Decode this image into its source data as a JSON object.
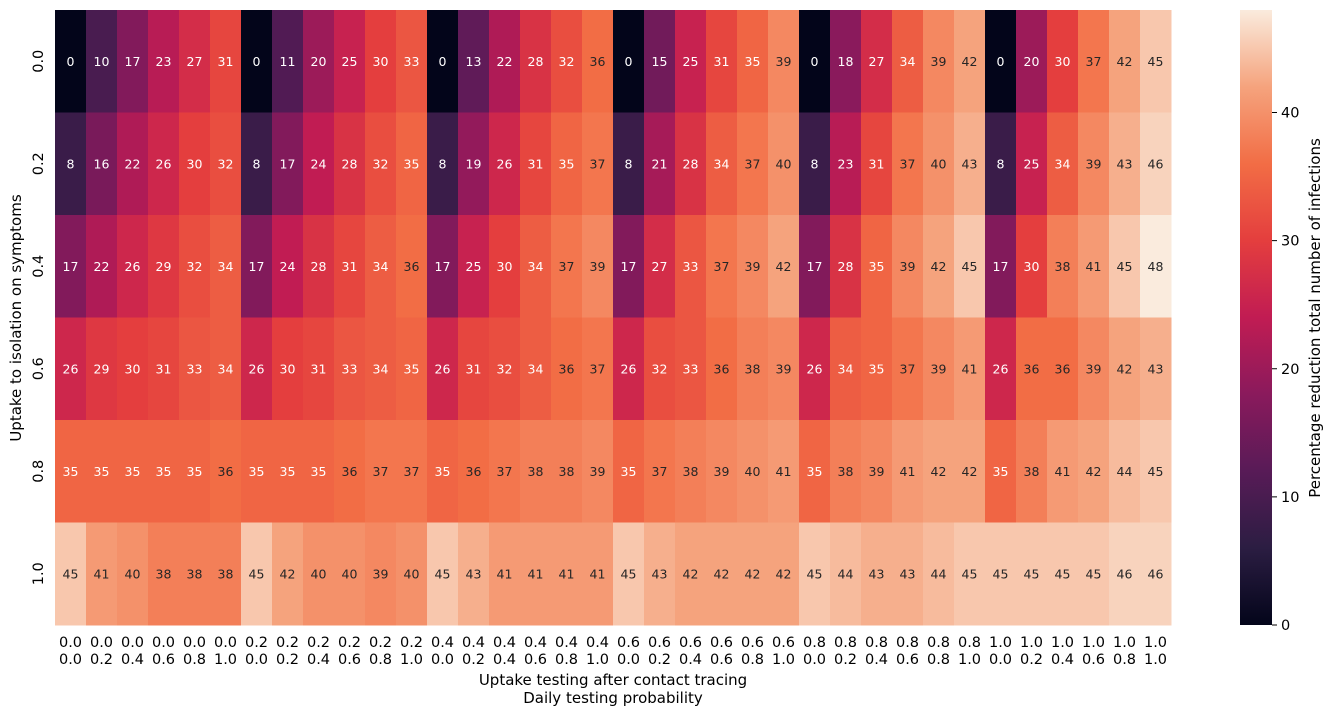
{
  "chart_data": {
    "type": "heatmap",
    "xlabel": "Uptake testing after contact tracing",
    "xlabel2": "Daily testing probability",
    "ylabel": "Uptake to isolation on symptoms",
    "colorbar_label": "Percentage reduction total number of infections",
    "colormap": "rocket",
    "vmin": 0,
    "vmax": 48,
    "colorbar_ticks": [
      "0",
      "10",
      "20",
      "30",
      "40"
    ],
    "y_categories": [
      "0.0",
      "0.2",
      "0.4",
      "0.6",
      "0.8",
      "1.0"
    ],
    "x_categories": [
      [
        "0.0",
        "0.0"
      ],
      [
        "0.0",
        "0.2"
      ],
      [
        "0.0",
        "0.4"
      ],
      [
        "0.0",
        "0.6"
      ],
      [
        "0.0",
        "0.8"
      ],
      [
        "0.0",
        "1.0"
      ],
      [
        "0.2",
        "0.0"
      ],
      [
        "0.2",
        "0.2"
      ],
      [
        "0.2",
        "0.4"
      ],
      [
        "0.2",
        "0.6"
      ],
      [
        "0.2",
        "0.8"
      ],
      [
        "0.2",
        "1.0"
      ],
      [
        "0.4",
        "0.0"
      ],
      [
        "0.4",
        "0.2"
      ],
      [
        "0.4",
        "0.4"
      ],
      [
        "0.4",
        "0.6"
      ],
      [
        "0.4",
        "0.8"
      ],
      [
        "0.4",
        "1.0"
      ],
      [
        "0.6",
        "0.0"
      ],
      [
        "0.6",
        "0.2"
      ],
      [
        "0.6",
        "0.4"
      ],
      [
        "0.6",
        "0.6"
      ],
      [
        "0.6",
        "0.8"
      ],
      [
        "0.6",
        "1.0"
      ],
      [
        "0.8",
        "0.0"
      ],
      [
        "0.8",
        "0.2"
      ],
      [
        "0.8",
        "0.4"
      ],
      [
        "0.8",
        "0.6"
      ],
      [
        "0.8",
        "0.8"
      ],
      [
        "0.8",
        "1.0"
      ],
      [
        "1.0",
        "0.0"
      ],
      [
        "1.0",
        "0.2"
      ],
      [
        "1.0",
        "0.4"
      ],
      [
        "1.0",
        "0.6"
      ],
      [
        "1.0",
        "0.8"
      ],
      [
        "1.0",
        "1.0"
      ]
    ],
    "values": [
      [
        0,
        10,
        17,
        23,
        27,
        31,
        0,
        11,
        20,
        25,
        30,
        33,
        0,
        13,
        22,
        28,
        32,
        36,
        0,
        15,
        25,
        31,
        35,
        39,
        0,
        18,
        27,
        34,
        39,
        42,
        0,
        20,
        30,
        37,
        42,
        45
      ],
      [
        8,
        16,
        22,
        26,
        30,
        32,
        8,
        17,
        24,
        28,
        32,
        35,
        8,
        19,
        26,
        31,
        35,
        37,
        8,
        21,
        28,
        34,
        37,
        40,
        8,
        23,
        31,
        37,
        40,
        43,
        8,
        25,
        34,
        39,
        43,
        46
      ],
      [
        17,
        22,
        26,
        29,
        32,
        34,
        17,
        24,
        28,
        31,
        34,
        36,
        17,
        25,
        30,
        34,
        37,
        39,
        17,
        27,
        33,
        37,
        39,
        42,
        17,
        28,
        35,
        39,
        42,
        45,
        17,
        30,
        38,
        41,
        45,
        48
      ],
      [
        26,
        29,
        30,
        31,
        33,
        34,
        26,
        30,
        31,
        33,
        34,
        35,
        26,
        31,
        32,
        34,
        36,
        37,
        26,
        32,
        33,
        36,
        38,
        39,
        26,
        34,
        35,
        37,
        39,
        41,
        26,
        36,
        36,
        39,
        42,
        43
      ],
      [
        35,
        35,
        35,
        35,
        35,
        36,
        35,
        35,
        35,
        36,
        37,
        37,
        35,
        36,
        37,
        38,
        38,
        39,
        35,
        37,
        38,
        39,
        40,
        41,
        35,
        38,
        39,
        41,
        42,
        42,
        35,
        38,
        41,
        42,
        44,
        45
      ],
      [
        45,
        41,
        40,
        38,
        38,
        38,
        45,
        42,
        40,
        40,
        39,
        40,
        45,
        43,
        41,
        41,
        41,
        41,
        45,
        43,
        42,
        42,
        42,
        42,
        45,
        44,
        43,
        43,
        44,
        45,
        45,
        45,
        45,
        45,
        46,
        46
      ]
    ]
  }
}
